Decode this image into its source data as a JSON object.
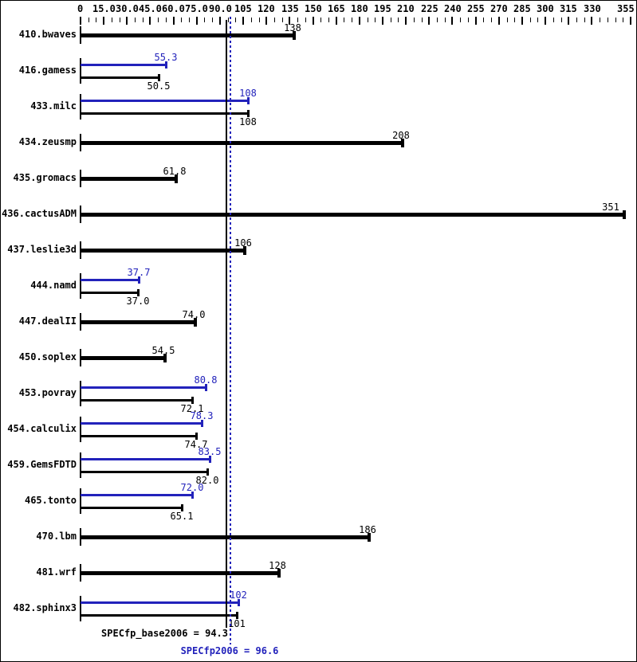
{
  "colors": {
    "base": "#000000",
    "peak": "#2222bb",
    "background": "#ffffff",
    "border": "#000000"
  },
  "footer": {
    "base_score_label": "SPECfp_base2006 = 94.3",
    "peak_score_label": "SPECfp2006 = 96.6"
  },
  "chart_data": {
    "type": "bar",
    "orientation": "horizontal",
    "title": "",
    "xlabel": "",
    "ylabel": "",
    "xlim": [
      0,
      355
    ],
    "grid": false,
    "legend": "none",
    "axis": {
      "position": "top",
      "minor_tick_step": 5,
      "major_tick_values": [
        0,
        15,
        30,
        45,
        60,
        75,
        90,
        105,
        120,
        135,
        150,
        165,
        180,
        195,
        210,
        225,
        240,
        255,
        270,
        285,
        300,
        315,
        330,
        355
      ],
      "major_tick_labels": [
        "0",
        "15.0",
        "30.0",
        "45.0",
        "60.0",
        "75.0",
        "90.0",
        "105",
        "120",
        "135",
        "150",
        "165",
        "180",
        "195",
        "210",
        "225",
        "240",
        "255",
        "270",
        "285",
        "300",
        "315",
        "330",
        "355"
      ]
    },
    "categories": [
      "410.bwaves",
      "416.gamess",
      "433.milc",
      "434.zeusmp",
      "435.gromacs",
      "436.cactusADM",
      "437.leslie3d",
      "444.namd",
      "447.dealII",
      "450.soplex",
      "453.povray",
      "454.calculix",
      "459.GemsFDTD",
      "465.tonto",
      "470.lbm",
      "481.wrf",
      "482.sphinx3"
    ],
    "series": [
      {
        "name": "peak",
        "color": "#2222bb",
        "values": [
          null,
          55.3,
          108,
          null,
          null,
          null,
          null,
          37.7,
          null,
          null,
          80.8,
          78.3,
          83.5,
          72.0,
          null,
          null,
          102
        ],
        "value_labels": [
          null,
          "55.3",
          "108",
          null,
          null,
          null,
          null,
          "37.7",
          null,
          null,
          "80.8",
          "78.3",
          "83.5",
          "72.0",
          null,
          null,
          "102"
        ]
      },
      {
        "name": "base",
        "color": "#000000",
        "values": [
          138,
          50.5,
          108,
          208,
          61.8,
          351,
          106,
          37.0,
          74.0,
          54.5,
          72.1,
          74.7,
          82.0,
          65.1,
          186,
          128,
          101
        ],
        "value_labels": [
          "138",
          "50.5",
          "108",
          "208",
          "61.8",
          "351",
          "106",
          "37.0",
          "74.0",
          "54.5",
          "72.1",
          "74.7",
          "82.0",
          "65.1",
          "186",
          "128",
          "101"
        ]
      }
    ],
    "reference_lines": [
      {
        "name": "base_mean",
        "value": 94.3,
        "color": "#000000",
        "style": "solid",
        "label": "SPECfp_base2006 = 94.3"
      },
      {
        "name": "peak_mean",
        "value": 96.6,
        "color": "#2222bb",
        "style": "dotted",
        "label": "SPECfp2006 = 96.6"
      }
    ]
  }
}
